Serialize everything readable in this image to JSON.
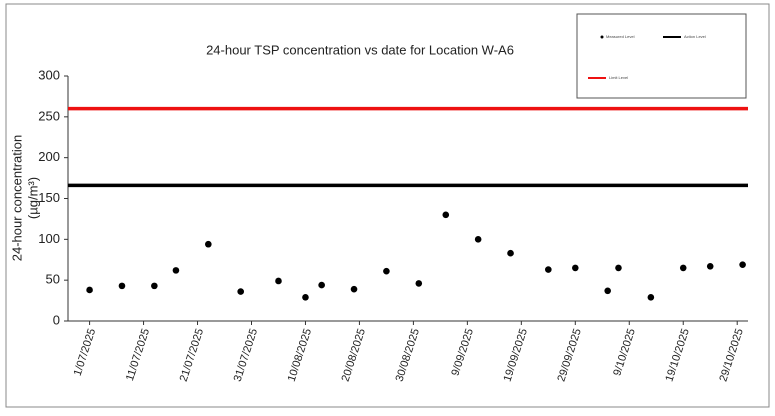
{
  "chart_data": {
    "type": "scatter",
    "title": "24-hour TSP concentration vs date for Location W-A6",
    "ylabel": [
      "24-hour concentration",
      "(µg/m³)"
    ],
    "x": [
      "2025-07-01",
      "2025-07-07",
      "2025-07-13",
      "2025-07-17",
      "2025-07-23",
      "2025-07-29",
      "2025-08-05",
      "2025-08-10",
      "2025-08-13",
      "2025-08-19",
      "2025-08-25",
      "2025-08-31",
      "2025-09-05",
      "2025-09-11",
      "2025-09-17",
      "2025-09-24",
      "2025-09-29",
      "2025-10-05",
      "2025-10-07",
      "2025-10-13",
      "2025-10-19",
      "2025-10-24",
      "2025-10-30"
    ],
    "series": [
      {
        "name": "Measured Level",
        "color": "#000000",
        "values": [
          38,
          43,
          43,
          62,
          94,
          36,
          49,
          29,
          44,
          39,
          61,
          46,
          130,
          100,
          83,
          63,
          65,
          37,
          65,
          29,
          65,
          67,
          69
        ]
      }
    ],
    "reference_lines": [
      {
        "name": "Action Level",
        "color": "#000000",
        "value": 166
      },
      {
        "name": "Limit Level",
        "color": "#ee1111",
        "value": 260
      }
    ],
    "xlim": [
      "2025-06-27",
      "2025-10-31"
    ],
    "xticks": [
      {
        "value": "2025-07-01",
        "label": "1/07/2025"
      },
      {
        "value": "2025-07-11",
        "label": "11/07/2025"
      },
      {
        "value": "2025-07-21",
        "label": "21/07/2025"
      },
      {
        "value": "2025-07-31",
        "label": "31/07/2025"
      },
      {
        "value": "2025-08-10",
        "label": "10/08/2025"
      },
      {
        "value": "2025-08-20",
        "label": "20/08/2025"
      },
      {
        "value": "2025-08-30",
        "label": "30/08/2025"
      },
      {
        "value": "2025-09-09",
        "label": "9/09/2025"
      },
      {
        "value": "2025-09-19",
        "label": "19/09/2025"
      },
      {
        "value": "2025-09-29",
        "label": "29/09/2025"
      },
      {
        "value": "2025-10-09",
        "label": "9/10/2025"
      },
      {
        "value": "2025-10-19",
        "label": "19/10/2025"
      },
      {
        "value": "2025-10-29",
        "label": "29/10/2025"
      }
    ],
    "ylim": [
      0,
      300
    ],
    "yticks": [
      0,
      50,
      100,
      150,
      200,
      250,
      300
    ],
    "legend": "top-right"
  }
}
